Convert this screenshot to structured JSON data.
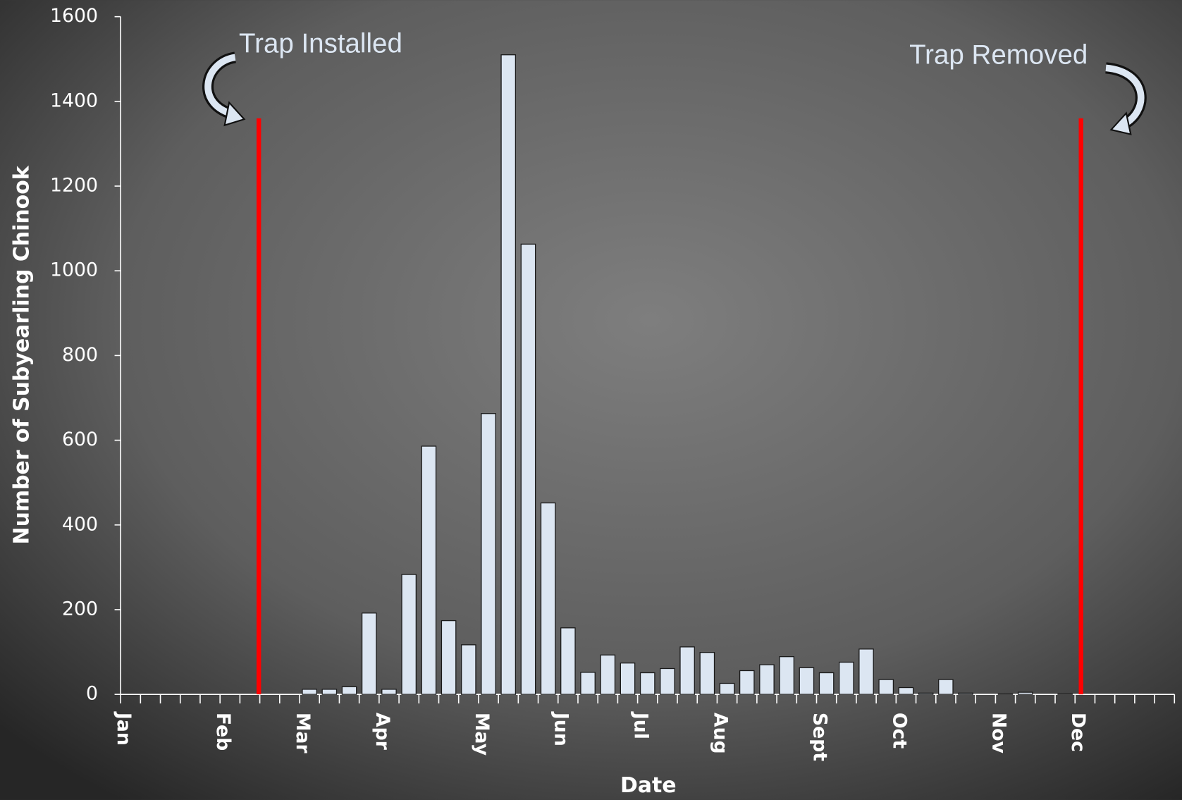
{
  "chart_data": {
    "type": "bar",
    "x_label": "Date",
    "y_label": "Number of Subyearling Chinook",
    "categories": [
      "Jan",
      null,
      null,
      null,
      null,
      "Feb",
      null,
      null,
      null,
      "Mar",
      null,
      null,
      null,
      "Apr",
      null,
      null,
      null,
      null,
      "May",
      null,
      null,
      null,
      "Jun",
      null,
      null,
      null,
      "Jul",
      null,
      null,
      null,
      "Aug",
      null,
      null,
      null,
      null,
      "Sept",
      null,
      null,
      null,
      "Oct",
      null,
      null,
      null,
      null,
      "Nov",
      null,
      null,
      null,
      "Dec",
      null,
      null,
      null,
      null
    ],
    "values": [
      null,
      null,
      null,
      null,
      null,
      null,
      null,
      null,
      null,
      12,
      12,
      18,
      192,
      12,
      283,
      586,
      174,
      117,
      663,
      1510,
      1063,
      452,
      157,
      52,
      93,
      74,
      51,
      61,
      112,
      99,
      26,
      56,
      70,
      89,
      63,
      51,
      76,
      107,
      35,
      16,
      3,
      35,
      3,
      0,
      1,
      5,
      0,
      1,
      null,
      null,
      null,
      null,
      null
    ],
    "color": "#dce6f2",
    "ylim": [
      0,
      1600
    ],
    "yticks": [
      0,
      200,
      400,
      600,
      800,
      1000,
      1200,
      1400,
      1600
    ],
    "markers": [
      {
        "label": "Trap Installed",
        "x": 6.95,
        "y": 1360,
        "color": "#ff0000"
      },
      {
        "label": "Trap Removed",
        "x": 48.3,
        "y": 1360,
        "color": "#ff0000"
      }
    ]
  }
}
